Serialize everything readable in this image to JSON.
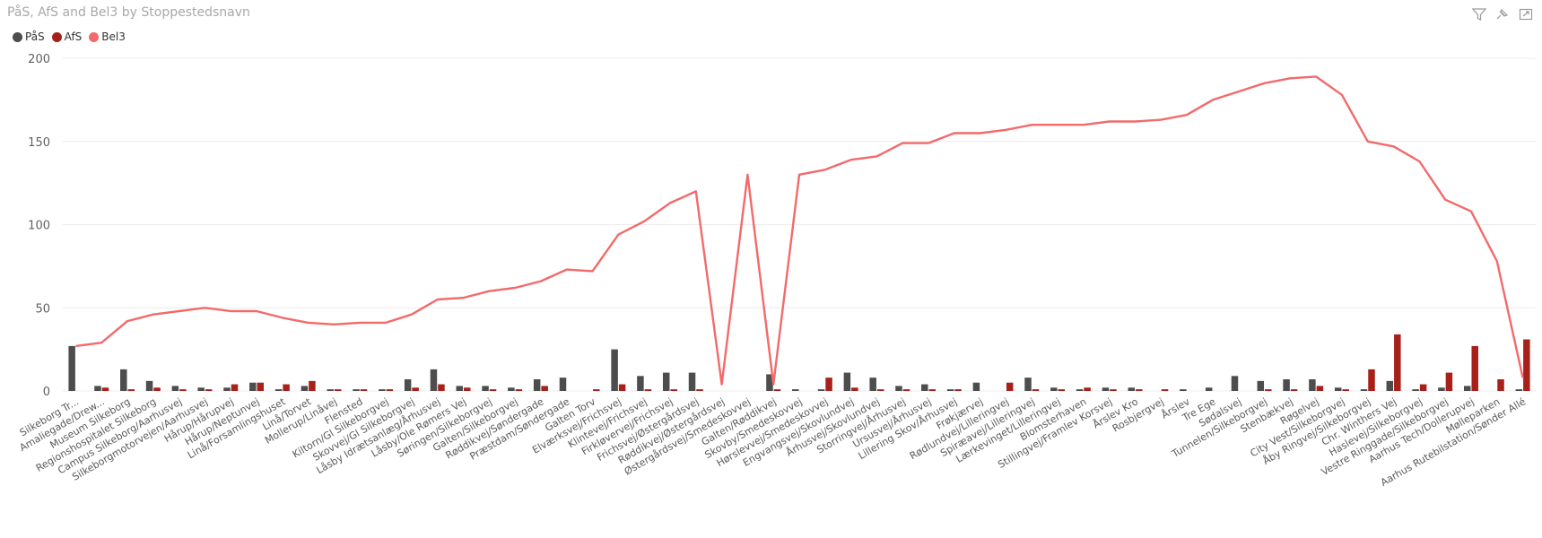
{
  "title": "PåS, AfS and Bel3 by Stoppestedsnavn",
  "toolbar": {
    "icons": [
      "filter-icon",
      "pin-icon",
      "expand-icon"
    ]
  },
  "chart_data": {
    "type": "bar",
    "title": "PåS, AfS and Bel3 by Stoppestedsnavn",
    "xlabel": "",
    "ylabel": "",
    "ylim": [
      0,
      200
    ],
    "yticks": [
      0,
      50,
      100,
      150,
      200
    ],
    "grid": true,
    "legend_position": "top-left",
    "categories": [
      "Silkeborg Tr...",
      "Amaliegade/Drew...",
      "Museum Silkeborg",
      "Regionshospitalet Silkeborg",
      "Campus Silkeborg/Aarhusvej",
      "Silkeborgmotorvejen/Aarhusvej",
      "Hårup/Hårupvej",
      "Hårup/Neptunvej",
      "Linå/Forsamlingshuset",
      "Linå/Torvet",
      "Mollerup/Linåvej",
      "Flensted",
      "Kiltorn/Gl Silkeborgvej",
      "Skovvej/Gl Silkeborgvej",
      "Låsby Idrætsanlæg/Århusvej",
      "Låsby/Ole Rømers Vej",
      "Søringen/Silkeborgvej",
      "Galten/Silkeborgvej",
      "Røddikvej/Søndergade",
      "Præstdam/Søndergade",
      "Galten Torv",
      "Elværksvej/Frichsvej",
      "Klintevej/Frichsvej",
      "Firkløvervej/Frichsvej",
      "Frichsvej/Østergårdsvej",
      "Røddikvej/Østergårdsvej",
      "Østergårdsvej/Smedeskovvej",
      "Galten/Røddikvej",
      "Skovby/Smedeskovvej",
      "Hørslevvej/Smedeskovvej",
      "Engvangsvej/Skovlundvej",
      "Århusvej/Skovlundvej",
      "Storringvej/Århusvej",
      "Ursusvej/Århusvej",
      "Lillering Skov/Århusvej",
      "Frøkjærvej",
      "Rødlundvej/Lilleringvej",
      "Spiræavej/Lilleringvej",
      "Lærkevinget/Lilleringvej",
      "Blomsterhaven",
      "Stillingvej/Framlev Korsvej",
      "Årslev Kro",
      "Rosbjergvej",
      "Årslev",
      "Tre Ege",
      "Sødalsvej",
      "Tunnelen/Silkeborgvej",
      "Stenbækvej",
      "Røgelvej",
      "City Vest/Silkeborgvej",
      "Åby Ringvej/Silkeborgvej",
      "Chr. Winthers Vej",
      "Haslevej/Silkeborgvej",
      "Vestre Ringgade/Silkeborgvej",
      "Aarhus Tech/Dollerupvej",
      "Mølleparken",
      "Aarhus Rutebilstation/Sønder Allé"
    ],
    "series": [
      {
        "name": "PåS",
        "color": "#4d4d4d",
        "values": [
          27,
          3,
          13,
          6,
          3,
          2,
          2,
          5,
          1,
          3,
          1,
          1,
          1,
          7,
          13,
          3,
          3,
          2,
          7,
          8,
          0,
          25,
          9,
          11,
          11,
          0,
          0,
          10,
          1,
          1,
          11,
          8,
          3,
          4,
          1,
          5,
          0,
          8,
          2,
          1,
          2,
          2,
          0,
          1,
          2,
          9,
          6,
          7,
          7,
          2,
          1,
          6,
          1,
          2,
          3,
          0,
          1
        ]
      },
      {
        "name": "AfS",
        "color": "#a8201a",
        "values": [
          0,
          2,
          1,
          2,
          1,
          1,
          4,
          5,
          4,
          6,
          1,
          1,
          1,
          2,
          4,
          2,
          1,
          1,
          3,
          0,
          1,
          4,
          1,
          1,
          1,
          0,
          0,
          1,
          0,
          8,
          2,
          1,
          1,
          1,
          1,
          0,
          5,
          1,
          1,
          2,
          1,
          1,
          1,
          0,
          0,
          0,
          1,
          1,
          3,
          1,
          13,
          34,
          4,
          11,
          27,
          7,
          31
        ]
      },
      {
        "name": "Bel3",
        "color": "#f26a6a",
        "type": "line",
        "values": [
          27,
          29,
          42,
          46,
          48,
          50,
          48,
          48,
          44,
          41,
          40,
          41,
          41,
          46,
          55,
          56,
          60,
          62,
          66,
          73,
          72,
          94,
          102,
          113,
          120,
          4,
          130,
          4,
          130,
          133,
          139,
          141,
          149,
          149,
          155,
          155,
          157,
          160,
          160,
          160,
          162,
          162,
          163,
          166,
          175,
          180,
          185,
          188,
          189,
          178,
          150,
          147,
          138,
          115,
          108,
          78,
          8
        ]
      }
    ]
  }
}
